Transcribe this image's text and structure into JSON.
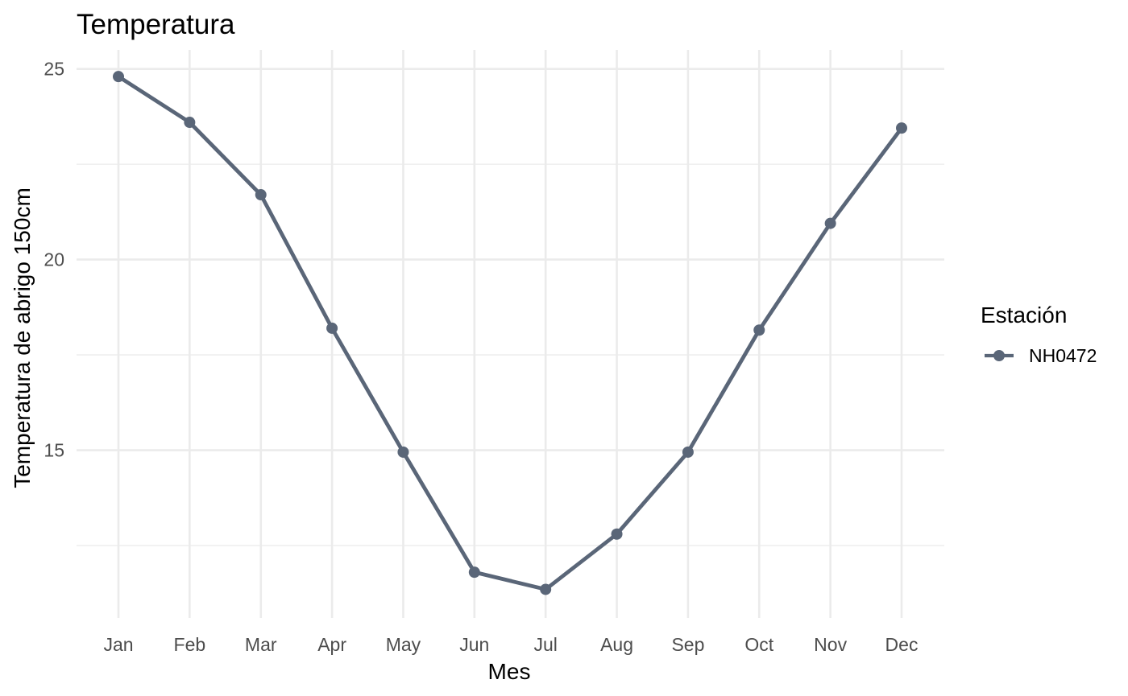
{
  "chart_data": {
    "type": "line",
    "title": "Temperatura",
    "xlabel": "Mes",
    "ylabel": "Temperatura de abrigo 150cm",
    "categories": [
      "Jan",
      "Feb",
      "Mar",
      "Apr",
      "May",
      "Jun",
      "Jul",
      "Aug",
      "Sep",
      "Oct",
      "Nov",
      "Dec"
    ],
    "series": [
      {
        "name": "NH0472",
        "values": [
          24.8,
          23.6,
          21.7,
          18.2,
          14.95,
          11.8,
          11.35,
          12.8,
          14.95,
          18.15,
          20.95,
          23.45
        ],
        "color": "#5a6678"
      }
    ],
    "ylim": [
      10.6,
      25.5
    ],
    "yticks": [
      15,
      20,
      25
    ],
    "ytick_labels": [
      "15",
      "20",
      "25"
    ],
    "legend": {
      "title": "Estación",
      "placement": "right"
    },
    "grid": true
  }
}
